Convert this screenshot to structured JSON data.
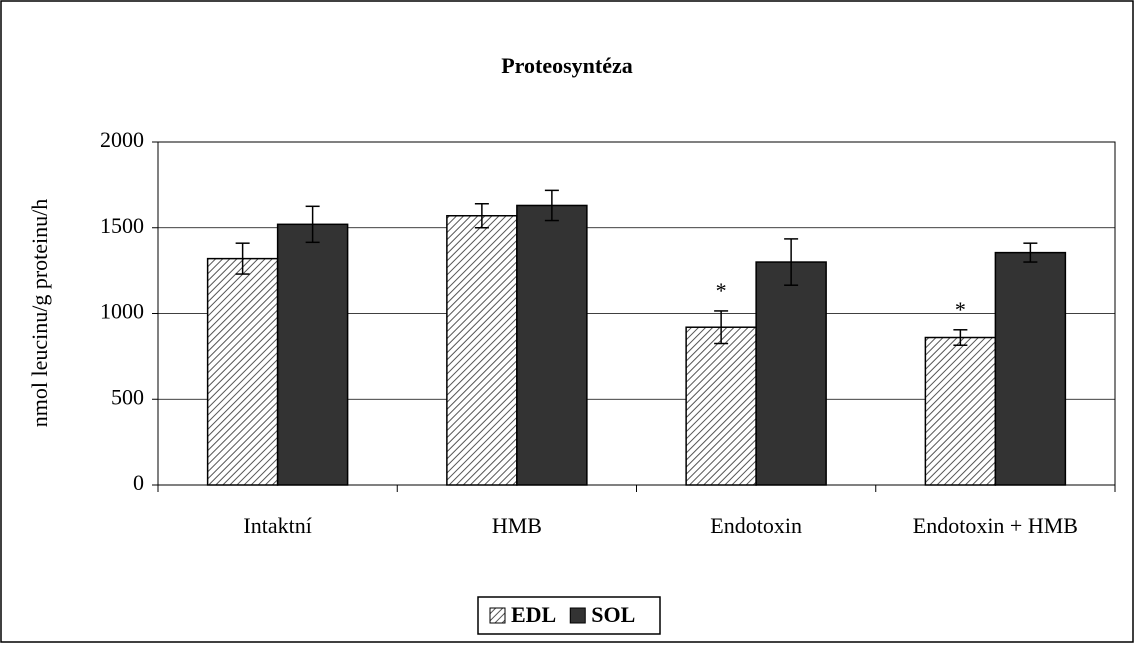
{
  "chart_data": {
    "type": "bar",
    "title": "Proteosyntéza",
    "y_label": "nmol leucinu/g proteinu/h",
    "categories": [
      "Intaktní",
      "HMB",
      "Endotoxin",
      "Endotoxin + HMB"
    ],
    "series": [
      {
        "name": "EDL",
        "color": "#ffffff",
        "hatch": true,
        "values": [
          1320,
          1570,
          920,
          860
        ],
        "errors": [
          90,
          70,
          95,
          45
        ]
      },
      {
        "name": "SOL",
        "color": "#333333",
        "hatch": false,
        "values": [
          1520,
          1630,
          1300,
          1355
        ],
        "errors": [
          105,
          88,
          135,
          55
        ]
      }
    ],
    "annotations": [
      {
        "text": "*",
        "category": "Endotoxin",
        "series": "EDL"
      },
      {
        "text": "*",
        "category": "Endotoxin + HMB",
        "series": "EDL"
      }
    ],
    "ylim": [
      0,
      2000
    ],
    "yticks": [
      0,
      500,
      1000,
      1500,
      2000
    ],
    "grid": true,
    "legend": "bottom"
  }
}
